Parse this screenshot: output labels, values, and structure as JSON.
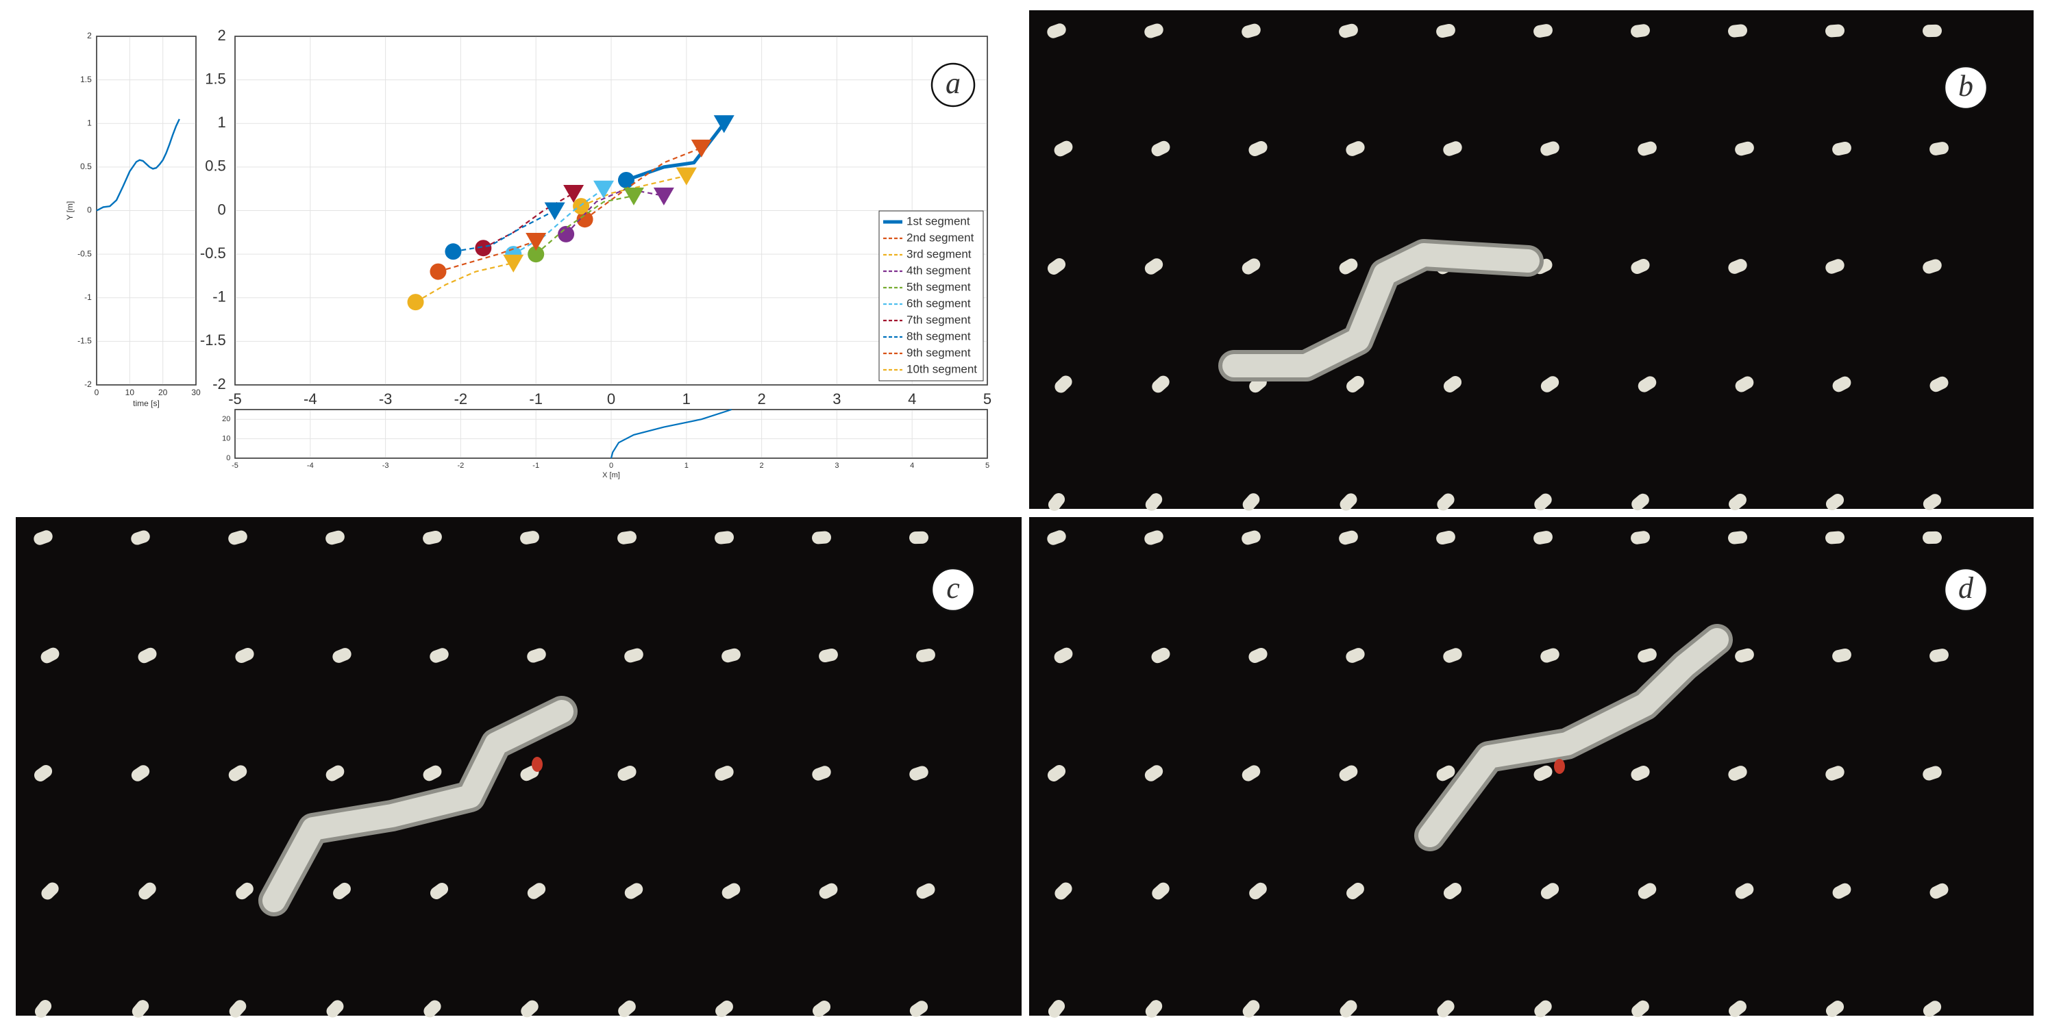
{
  "chart_data": [
    {
      "type": "line",
      "xlabel": "time [s]",
      "ylabel": "Y [m]",
      "xlim": [
        0,
        30
      ],
      "xticks": [
        0,
        10,
        20,
        30
      ],
      "ylim": [
        -2,
        2
      ],
      "yticks": [
        -2,
        -1.5,
        -1,
        -0.5,
        0,
        0.5,
        1,
        1.5,
        2
      ],
      "grid": true,
      "color": "#0072BD",
      "x": [
        0,
        2,
        4,
        6,
        8,
        10,
        12,
        13,
        14,
        16,
        17,
        18,
        19,
        20,
        21,
        22,
        23,
        24,
        25
      ],
      "values": [
        0,
        0.04,
        0.05,
        0.12,
        0.28,
        0.45,
        0.56,
        0.58,
        0.57,
        0.5,
        0.48,
        0.49,
        0.53,
        0.58,
        0.66,
        0.76,
        0.87,
        0.97,
        1.05
      ]
    },
    {
      "type": "line",
      "xlim": [
        -5,
        5
      ],
      "xticks": [
        -5,
        -4,
        -3,
        -2,
        -1,
        0,
        1,
        2,
        3,
        4,
        5
      ],
      "ylim": [
        -2,
        2
      ],
      "yticks": [
        -2,
        -1.5,
        -1,
        -0.5,
        0,
        0.5,
        1,
        1.5,
        2
      ],
      "grid": true,
      "legend": "lower right",
      "series": [
        {
          "name": "1st segment",
          "color": "#0072BD",
          "line_style": "solid",
          "x": [
            0.2,
            0.7,
            1.1,
            1.5
          ],
          "values": [
            0.35,
            0.5,
            0.55,
            1.0
          ]
        },
        {
          "name": "2nd segment",
          "color": "#D95319",
          "line_style": "dashed",
          "x": [
            -0.35,
            0.2,
            0.7,
            1.2
          ],
          "values": [
            -0.1,
            0.25,
            0.55,
            0.72
          ]
        },
        {
          "name": "3rd segment",
          "color": "#EDB120",
          "line_style": "dashed",
          "x": [
            -0.4,
            0,
            0.5,
            1.0
          ],
          "values": [
            0.05,
            0.2,
            0.3,
            0.4
          ]
        },
        {
          "name": "4th segment",
          "color": "#7E2F8E",
          "line_style": "dashed",
          "x": [
            -0.6,
            -0.2,
            0.2,
            0.7
          ],
          "values": [
            -0.27,
            0.1,
            0.25,
            0.17
          ]
        },
        {
          "name": "5th segment",
          "color": "#77AC30",
          "line_style": "dashed",
          "x": [
            -1.0,
            -0.6,
            -0.1,
            0.3
          ],
          "values": [
            -0.5,
            -0.2,
            0.1,
            0.17
          ]
        },
        {
          "name": "6th segment",
          "color": "#4DBEEE",
          "line_style": "dashed",
          "x": [
            -1.3,
            -0.9,
            -0.5,
            -0.1
          ],
          "values": [
            -0.5,
            -0.3,
            0.0,
            0.25
          ]
        },
        {
          "name": "7th segment",
          "color": "#A2142F",
          "line_style": "dashed",
          "x": [
            -1.7,
            -1.3,
            -0.9,
            -0.5
          ],
          "values": [
            -0.43,
            -0.25,
            0.0,
            0.2
          ]
        },
        {
          "name": "8th segment",
          "color": "#0072BD",
          "line_style": "dashed",
          "x": [
            -2.1,
            -1.6,
            -1.2,
            -0.75
          ],
          "values": [
            -0.47,
            -0.4,
            -0.2,
            0.0
          ]
        },
        {
          "name": "9th segment",
          "color": "#D95319",
          "line_style": "dashed",
          "x": [
            -2.3,
            -1.9,
            -1.5,
            -1.0
          ],
          "values": [
            -0.7,
            -0.6,
            -0.5,
            -0.35
          ]
        },
        {
          "name": "10th segment",
          "color": "#EDB120",
          "line_style": "dashed",
          "x": [
            -2.6,
            -2.2,
            -1.8,
            -1.3
          ],
          "values": [
            -1.05,
            -0.85,
            -0.7,
            -0.6
          ]
        }
      ]
    },
    {
      "type": "line",
      "xlabel": "X [m]",
      "xlim": [
        -5,
        5
      ],
      "xticks": [
        -5,
        -4,
        -3,
        -2,
        -1,
        0,
        1,
        2,
        3,
        4,
        5
      ],
      "ylim": [
        0,
        25
      ],
      "yticks": [
        0,
        10,
        20
      ],
      "grid": true,
      "color": "#0072BD",
      "x": [
        0,
        0.02,
        0.1,
        0.3,
        0.7,
        1.2,
        1.6
      ],
      "values": [
        0,
        3,
        8,
        12,
        16,
        20,
        25
      ]
    }
  ],
  "panel_labels": [
    "a",
    "b",
    "c",
    "d"
  ]
}
